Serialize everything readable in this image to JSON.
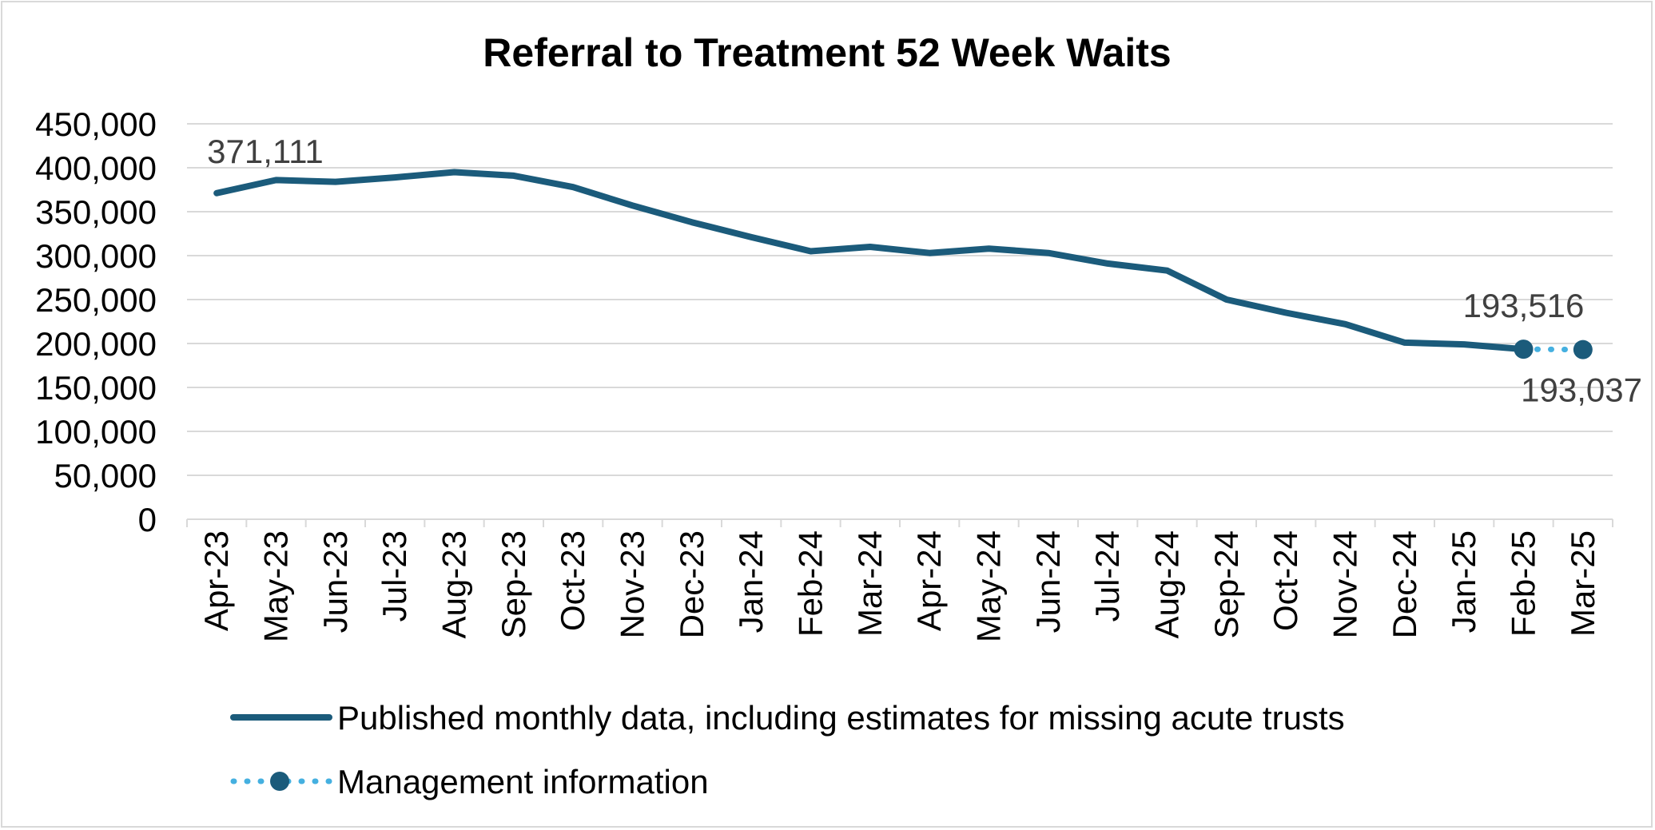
{
  "chart_data": {
    "type": "line",
    "title": "Referral to Treatment 52 Week Waits",
    "xlabel": "",
    "ylabel": "",
    "ylim": [
      0,
      450000
    ],
    "yticks": [
      "0",
      "50,000",
      "100,000",
      "150,000",
      "200,000",
      "250,000",
      "300,000",
      "350,000",
      "400,000",
      "450,000"
    ],
    "grid": true,
    "legend_position": "bottom",
    "categories": [
      "Apr-23",
      "May-23",
      "Jun-23",
      "Jul-23",
      "Aug-23",
      "Sep-23",
      "Oct-23",
      "Nov-23",
      "Dec-23",
      "Jan-24",
      "Feb-24",
      "Mar-24",
      "Apr-24",
      "May-24",
      "Jun-24",
      "Jul-24",
      "Aug-24",
      "Sep-24",
      "Oct-24",
      "Nov-24",
      "Dec-24",
      "Jan-25",
      "Feb-25",
      "Mar-25"
    ],
    "series": [
      {
        "name": "Published monthly data, including estimates for missing acute trusts",
        "color": "#1b5b7b",
        "style": "solid",
        "values": [
          371111,
          386000,
          384000,
          389000,
          395000,
          391000,
          378000,
          357000,
          338000,
          321000,
          305000,
          310000,
          303000,
          308000,
          303000,
          291000,
          283000,
          250000,
          235000,
          222000,
          201000,
          199000,
          193516,
          null
        ]
      },
      {
        "name": "Management information",
        "color": "#45b0e0",
        "marker_color": "#1b5b7b",
        "style": "dotted",
        "values": [
          null,
          null,
          null,
          null,
          null,
          null,
          null,
          null,
          null,
          null,
          null,
          null,
          null,
          null,
          null,
          null,
          null,
          null,
          null,
          null,
          null,
          null,
          193516,
          193037
        ]
      }
    ],
    "data_labels": [
      {
        "category": "Apr-23",
        "text": "371,111",
        "position": "above"
      },
      {
        "category": "Feb-25",
        "text": "193,516",
        "position": "above"
      },
      {
        "category": "Mar-25",
        "text": "193,037",
        "position": "below"
      }
    ]
  }
}
